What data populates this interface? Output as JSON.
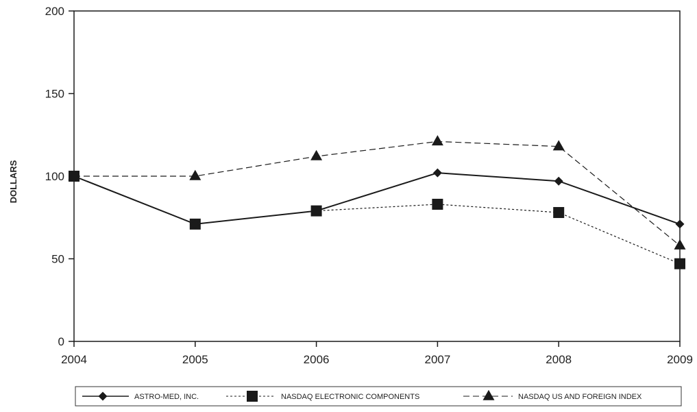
{
  "chart_data": {
    "type": "line",
    "title": "",
    "xlabel": "",
    "ylabel": "DOLLARS",
    "x": [
      "2004",
      "2005",
      "2006",
      "2007",
      "2008",
      "2009"
    ],
    "ylim": [
      0,
      200
    ],
    "yticks": [
      0,
      50,
      100,
      150,
      200
    ],
    "grid": false,
    "legend_position": "bottom",
    "series": [
      {
        "name": "ASTRO-MED, INC.",
        "values": [
          100,
          71,
          79,
          102,
          97,
          71
        ],
        "marker": "diamond",
        "line_style": "solid",
        "color": "#1a1a1a"
      },
      {
        "name": "NASDAQ ELECTRONIC COMPONENTS",
        "values": [
          100,
          71,
          79,
          83,
          78,
          47
        ],
        "marker": "square",
        "line_style": "dotted",
        "color": "#1a1a1a"
      },
      {
        "name": "NASDAQ US AND FOREIGN INDEX",
        "values": [
          100,
          100,
          112,
          121,
          118,
          58
        ],
        "marker": "triangle",
        "line_style": "dashed",
        "color": "#1a1a1a"
      }
    ]
  }
}
